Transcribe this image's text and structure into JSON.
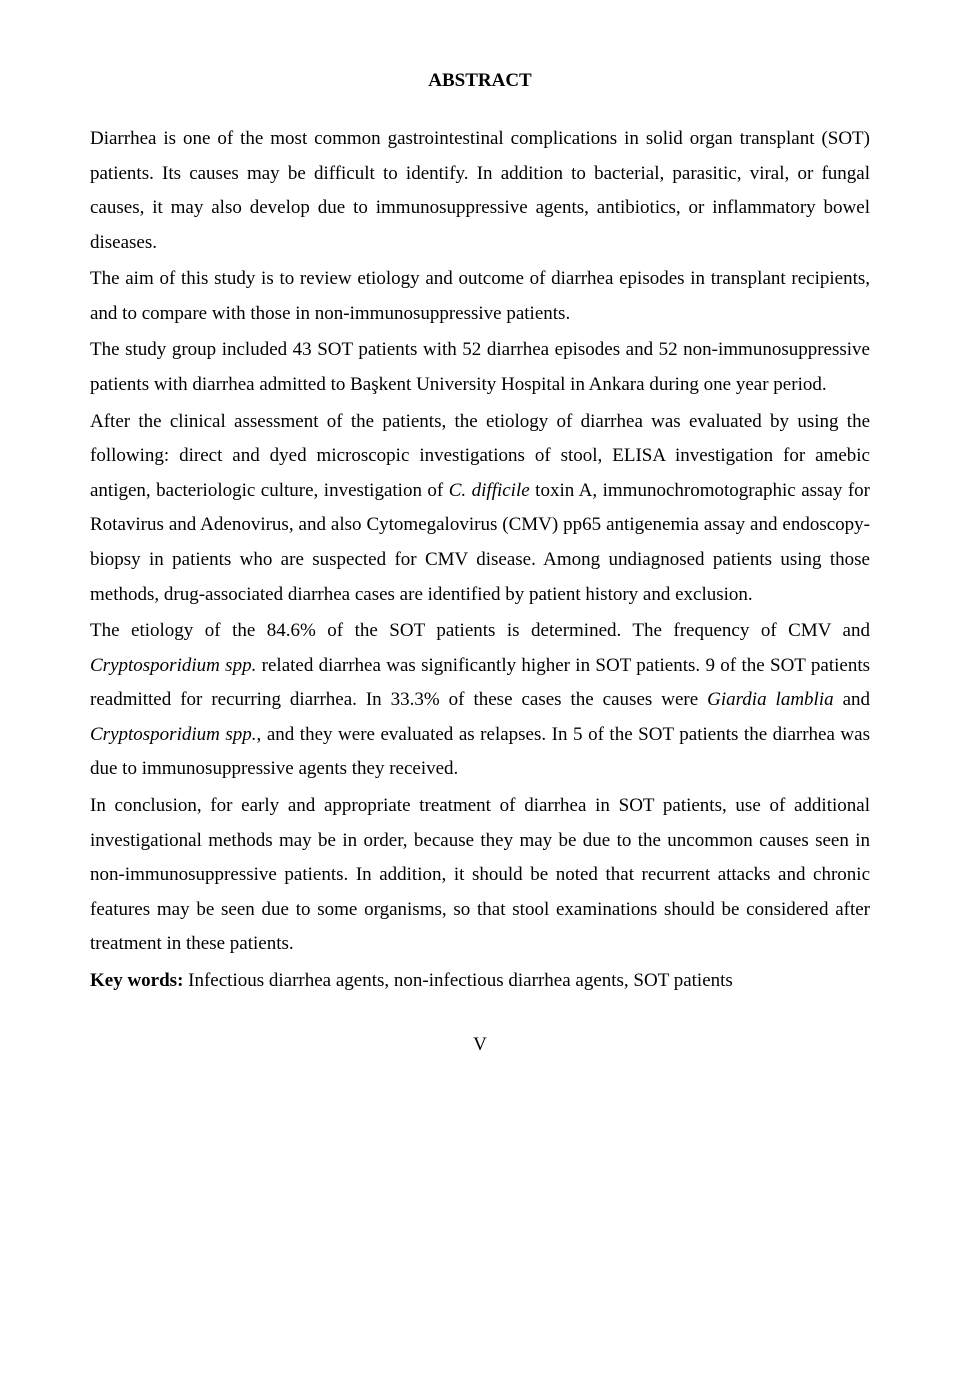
{
  "title": "ABSTRACT",
  "paragraphs": {
    "p1": "Diarrhea is one of the most common gastrointestinal complications in solid organ transplant (SOT) patients. Its causes may be difficult to identify. In addition to bacterial, parasitic, viral, or fungal causes, it may also develop due to immunosuppressive agents, antibiotics, or inflammatory bowel diseases.",
    "p2": "The aim of this study is to review etiology and outcome of diarrhea episodes in transplant recipients, and to compare with those in non-immunosuppressive patients.",
    "p3": "The study group included 43 SOT patients with 52 diarrhea episodes and 52 non-immunosuppressive patients with diarrhea admitted to Başkent University Hospital in Ankara during one year period.",
    "p4a": "After the clinical assessment of the patients, the etiology of diarrhea was evaluated by using the following: direct and dyed microscopic investigations of stool, ELISA investigation for amebic antigen, bacteriologic culture, investigation of ",
    "p4_i1": "C. difficile",
    "p4b": " toxin A, immunochromotographic assay for Rotavirus and Adenovirus, and also Cytomegalovirus (CMV) pp65 antigenemia assay and endoscopy-biopsy in patients who are suspected for CMV disease. Among undiagnosed patients using those methods, drug-associated diarrhea cases are identified by patient history and exclusion.",
    "p5a": "The etiology of the 84.6% of the SOT patients is determined. The frequency of CMV and ",
    "p5_i1": "Cryptosporidium spp.",
    "p5b": " related diarrhea was significantly higher in SOT patients. 9 of the SOT patients readmitted for recurring diarrhea. In 33.3% of these cases the causes were ",
    "p5_i2": "Giardia lamblia",
    "p5c": " and ",
    "p5_i3": "Cryptosporidium spp.",
    "p5d": ", and they were evaluated as relapses. In 5 of the SOT patients the diarrhea was due to immunosuppressive agents they received.",
    "p6": "In conclusion, for early and appropriate treatment of diarrhea in SOT patients, use of additional investigational methods may be in order, because they may be due to the uncommon causes seen in non-immunosuppressive patients. In addition, it should be noted that recurrent attacks and chronic features may be seen due to some organisms, so that stool examinations should be considered after treatment in these patients."
  },
  "keywords": {
    "label": "Key words:",
    "text": " Infectious diarrhea agents, non-infectious diarrhea agents, SOT patients"
  },
  "pageNumber": "V"
}
